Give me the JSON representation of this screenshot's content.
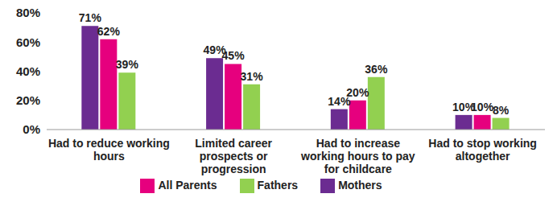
{
  "chart_data": {
    "type": "bar",
    "categories": [
      "Had to reduce working hours",
      "Limited career prospects or progression",
      "Had to increase working hours to pay for childcare",
      "Had to stop working altogether"
    ],
    "series": [
      {
        "name": "Mothers",
        "color": "#6b2c91",
        "values": [
          71,
          49,
          14,
          10
        ],
        "value_labels": [
          "71%",
          "49%",
          "14%",
          "10%"
        ]
      },
      {
        "name": "All Parents",
        "color": "#e6007e",
        "values": [
          62,
          45,
          20,
          10
        ],
        "value_labels": [
          "62%",
          "45%",
          "20%",
          "10%"
        ]
      },
      {
        "name": "Fathers",
        "color": "#92d050",
        "values": [
          39,
          31,
          36,
          8
        ],
        "value_labels": [
          "39%",
          "31%",
          "36%",
          "8%"
        ]
      }
    ],
    "ylim": [
      0,
      80
    ],
    "yticks": [
      {
        "value": 0,
        "label": "0%"
      },
      {
        "value": 20,
        "label": "20%"
      },
      {
        "value": 40,
        "label": "40%"
      },
      {
        "value": 60,
        "label": "60%"
      },
      {
        "value": 80,
        "label": "80%"
      }
    ],
    "grid": false,
    "legend": "bottom",
    "data_labels": true
  }
}
